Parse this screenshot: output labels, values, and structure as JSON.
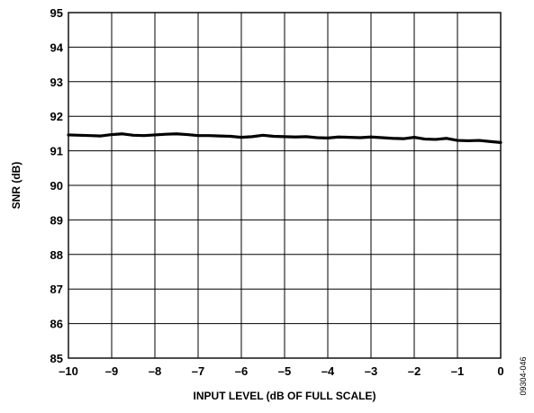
{
  "chart_data": {
    "type": "line",
    "title": "",
    "xlabel": "INPUT LEVEL (dB OF FULL SCALE)",
    "ylabel": "SNR (dB)",
    "xlim": [
      -10,
      0
    ],
    "ylim": [
      85,
      95
    ],
    "xticks": [
      "–10",
      "–9",
      "–8",
      "–7",
      "–6",
      "–5",
      "–4",
      "–3",
      "–2",
      "–1",
      "0"
    ],
    "yticks": [
      "85",
      "86",
      "87",
      "88",
      "89",
      "90",
      "91",
      "92",
      "93",
      "94",
      "95"
    ],
    "grid": true,
    "legend": "none",
    "series": [
      {
        "color": "#000000",
        "x": [
          -10,
          -9.75,
          -9.5,
          -9.25,
          -9,
          -8.75,
          -8.5,
          -8.25,
          -8,
          -7.75,
          -7.5,
          -7.25,
          -7,
          -6.75,
          -6.5,
          -6.25,
          -6,
          -5.75,
          -5.5,
          -5.25,
          -5,
          -4.75,
          -4.5,
          -4.25,
          -4,
          -3.75,
          -3.5,
          -3.25,
          -3,
          -2.75,
          -2.5,
          -2.25,
          -2,
          -1.75,
          -1.5,
          -1.25,
          -1,
          -0.75,
          -0.5,
          -0.25,
          0
        ],
        "y": [
          91.46,
          91.45,
          91.44,
          91.43,
          91.47,
          91.49,
          91.45,
          91.44,
          91.46,
          91.48,
          91.49,
          91.47,
          91.44,
          91.44,
          91.43,
          91.42,
          91.39,
          91.41,
          91.45,
          91.42,
          91.41,
          91.4,
          91.41,
          91.38,
          91.37,
          91.4,
          91.39,
          91.38,
          91.4,
          91.38,
          91.36,
          91.35,
          91.39,
          91.34,
          91.33,
          91.36,
          91.3,
          91.29,
          91.3,
          91.27,
          91.24
        ]
      }
    ]
  },
  "figure_id": "09304-046"
}
